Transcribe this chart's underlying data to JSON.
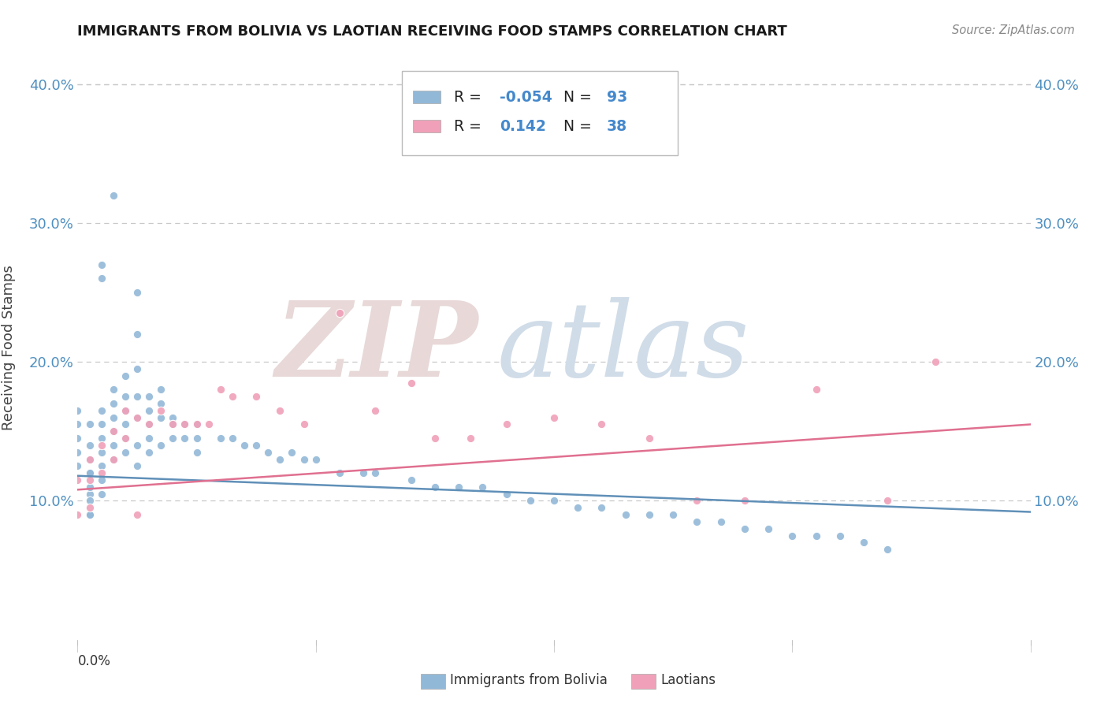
{
  "title": "IMMIGRANTS FROM BOLIVIA VS LAOTIAN RECEIVING FOOD STAMPS CORRELATION CHART",
  "source": "Source: ZipAtlas.com",
  "ylabel": "Receiving Food Stamps",
  "legend_label1": "Immigrants from Bolivia",
  "legend_label2": "Laotians",
  "xmin": 0.0,
  "xmax": 0.08,
  "ymin": 0.0,
  "ymax": 0.42,
  "yticks": [
    0.1,
    0.2,
    0.3,
    0.4
  ],
  "ytick_labels": [
    "10.0%",
    "20.0%",
    "30.0%",
    "40.0%"
  ],
  "blue_color": "#92b8d8",
  "pink_color": "#f0a0b8",
  "blue_line_color": "#6090b8",
  "pink_line_color": "#e07090",
  "background_color": "#ffffff",
  "grid_color": "#c8c8c8",
  "bolivia_x": [
    0.001,
    0.001,
    0.001,
    0.001,
    0.001,
    0.001,
    0.002,
    0.002,
    0.002,
    0.002,
    0.002,
    0.002,
    0.002,
    0.003,
    0.003,
    0.003,
    0.003,
    0.003,
    0.003,
    0.004,
    0.004,
    0.004,
    0.004,
    0.004,
    0.004,
    0.005,
    0.005,
    0.005,
    0.005,
    0.005,
    0.005,
    0.005,
    0.006,
    0.006,
    0.006,
    0.006,
    0.006,
    0.007,
    0.007,
    0.007,
    0.007,
    0.008,
    0.008,
    0.008,
    0.009,
    0.009,
    0.01,
    0.01,
    0.01,
    0.012,
    0.013,
    0.014,
    0.015,
    0.016,
    0.017,
    0.018,
    0.019,
    0.02,
    0.022,
    0.024,
    0.025,
    0.028,
    0.03,
    0.032,
    0.034,
    0.036,
    0.038,
    0.04,
    0.042,
    0.044,
    0.046,
    0.048,
    0.05,
    0.052,
    0.054,
    0.056,
    0.058,
    0.06,
    0.062,
    0.064,
    0.066,
    0.068,
    0.0,
    0.0,
    0.0,
    0.0,
    0.0,
    0.001,
    0.001,
    0.001,
    0.001,
    0.002,
    0.002,
    0.003
  ],
  "bolivia_y": [
    0.155,
    0.14,
    0.13,
    0.12,
    0.105,
    0.09,
    0.165,
    0.155,
    0.145,
    0.135,
    0.125,
    0.115,
    0.105,
    0.18,
    0.17,
    0.16,
    0.15,
    0.14,
    0.13,
    0.19,
    0.175,
    0.165,
    0.155,
    0.145,
    0.135,
    0.25,
    0.22,
    0.195,
    0.175,
    0.16,
    0.14,
    0.125,
    0.175,
    0.165,
    0.155,
    0.145,
    0.135,
    0.18,
    0.17,
    0.16,
    0.14,
    0.16,
    0.155,
    0.145,
    0.155,
    0.145,
    0.155,
    0.145,
    0.135,
    0.145,
    0.145,
    0.14,
    0.14,
    0.135,
    0.13,
    0.135,
    0.13,
    0.13,
    0.12,
    0.12,
    0.12,
    0.115,
    0.11,
    0.11,
    0.11,
    0.105,
    0.1,
    0.1,
    0.095,
    0.095,
    0.09,
    0.09,
    0.09,
    0.085,
    0.085,
    0.08,
    0.08,
    0.075,
    0.075,
    0.075,
    0.07,
    0.065,
    0.165,
    0.155,
    0.145,
    0.135,
    0.125,
    0.12,
    0.11,
    0.1,
    0.09,
    0.27,
    0.26,
    0.32
  ],
  "laotian_x": [
    0.0,
    0.0,
    0.001,
    0.001,
    0.001,
    0.002,
    0.002,
    0.003,
    0.003,
    0.004,
    0.004,
    0.005,
    0.005,
    0.006,
    0.007,
    0.008,
    0.009,
    0.01,
    0.011,
    0.012,
    0.013,
    0.015,
    0.017,
    0.019,
    0.022,
    0.025,
    0.028,
    0.03,
    0.033,
    0.036,
    0.04,
    0.044,
    0.048,
    0.052,
    0.056,
    0.062,
    0.068,
    0.072
  ],
  "laotian_y": [
    0.115,
    0.09,
    0.13,
    0.115,
    0.095,
    0.14,
    0.12,
    0.15,
    0.13,
    0.165,
    0.145,
    0.16,
    0.09,
    0.155,
    0.165,
    0.155,
    0.155,
    0.155,
    0.155,
    0.18,
    0.175,
    0.175,
    0.165,
    0.155,
    0.235,
    0.165,
    0.185,
    0.145,
    0.145,
    0.155,
    0.16,
    0.155,
    0.145,
    0.1,
    0.1,
    0.18,
    0.1,
    0.2
  ],
  "bolivia_line_x": [
    0.0,
    0.08
  ],
  "bolivia_line_y": [
    0.118,
    0.092
  ],
  "laotian_line_x": [
    0.0,
    0.08
  ],
  "laotian_line_y": [
    0.108,
    0.155
  ]
}
